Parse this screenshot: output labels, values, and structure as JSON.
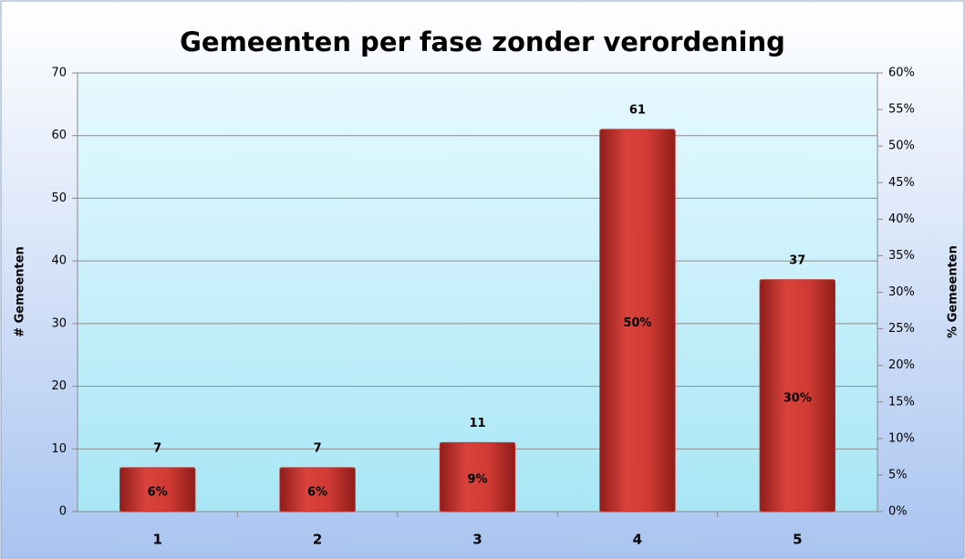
{
  "chart_data": {
    "type": "bar",
    "title": "Gemeenten per fase zonder verordening",
    "y_label": "# Gemeenten",
    "y2_label": "% Gemeenten",
    "categories": [
      "1",
      "2",
      "3",
      "4",
      "5"
    ],
    "series": [
      {
        "color": "#c8302b",
        "values": [
          7,
          7,
          11,
          61,
          37
        ]
      },
      {
        "axis": "y2",
        "display": "label-inside",
        "values": [
          6,
          6,
          9,
          50,
          30
        ],
        "value_labels": [
          "6%",
          "6%",
          "9%",
          "50%",
          "30%"
        ]
      }
    ],
    "ylim": [
      0,
      70
    ],
    "yticks": [
      0,
      10,
      20,
      30,
      40,
      50,
      60,
      70
    ],
    "y2lim": [
      0,
      60
    ],
    "y2ticks": [
      {
        "value": 0,
        "label": "0%"
      },
      {
        "value": 5,
        "label": "5%"
      },
      {
        "value": 10,
        "label": "10%"
      },
      {
        "value": 15,
        "label": "15%"
      },
      {
        "value": 20,
        "label": "20%"
      },
      {
        "value": 25,
        "label": "25%"
      },
      {
        "value": 30,
        "label": "30%"
      },
      {
        "value": 35,
        "label": "35%"
      },
      {
        "value": 40,
        "label": "40%"
      },
      {
        "value": 45,
        "label": "45%"
      },
      {
        "value": 50,
        "label": "50%"
      },
      {
        "value": 55,
        "label": "55%"
      },
      {
        "value": 60,
        "label": "60%"
      }
    ],
    "grid": true
  }
}
